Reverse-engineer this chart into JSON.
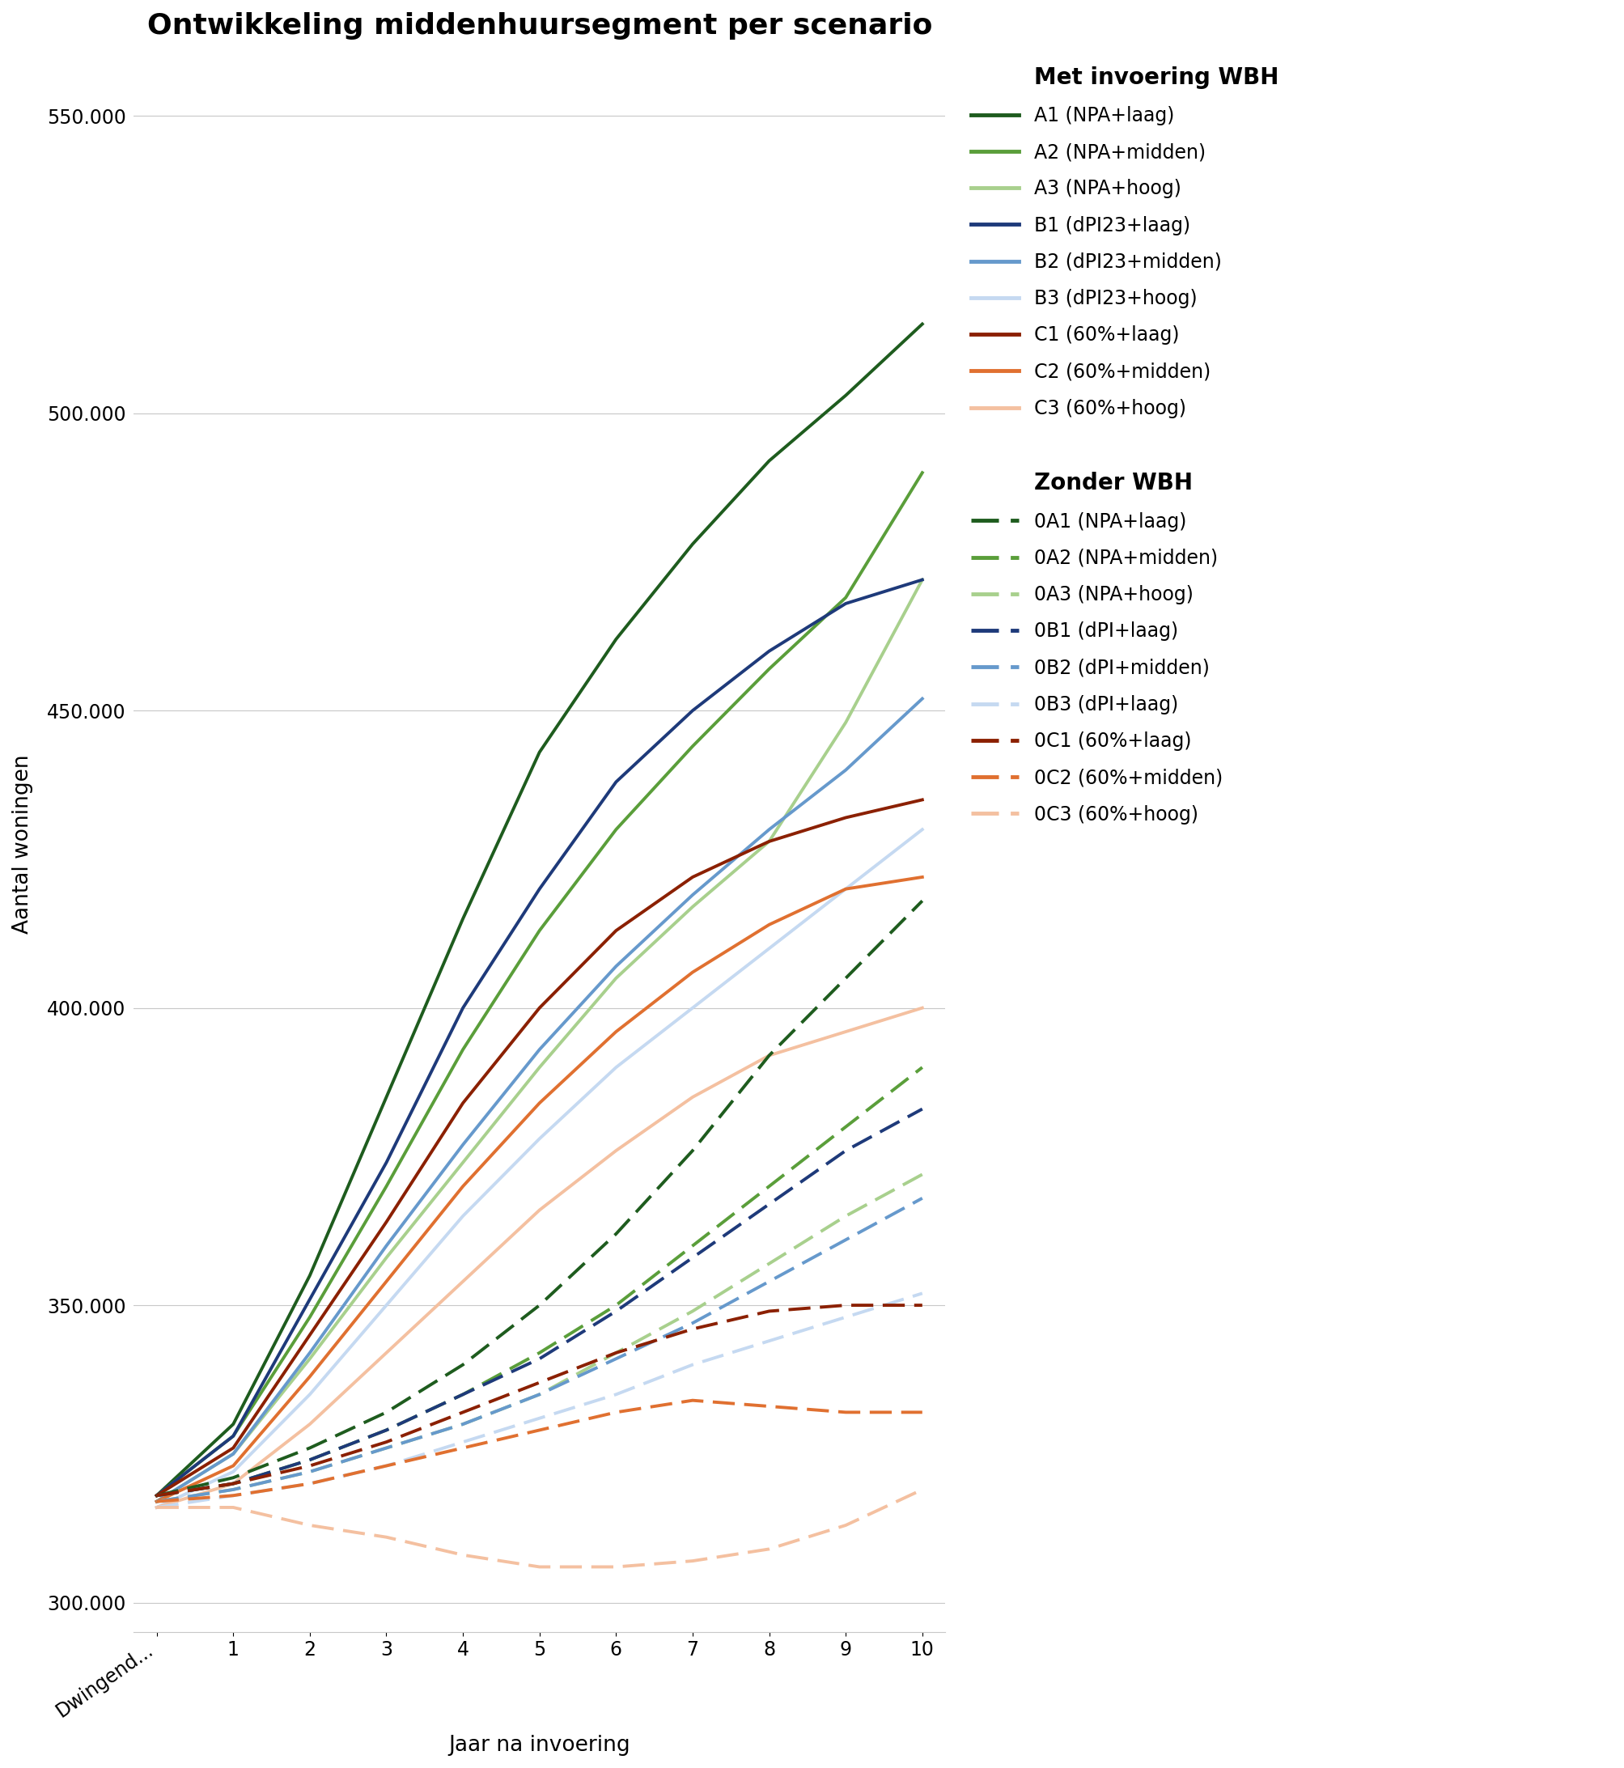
{
  "title": "Ontwikkeling middenhuursegment per scenario",
  "xlabel": "Jaar na invoering",
  "ylabel": "Aantal woningen",
  "xtick_labels": [
    "Dwingend...",
    "1",
    "2",
    "3",
    "4",
    "5",
    "6",
    "7",
    "8",
    "9",
    "10"
  ],
  "ylim": [
    295000,
    560000
  ],
  "yticks": [
    300000,
    350000,
    400000,
    450000,
    500000,
    550000
  ],
  "background_color": "#ffffff",
  "legend_header1": "Met invoering WBH",
  "legend_header2": "Zonder WBH",
  "series": [
    {
      "label": "A1 (NPA+laag)",
      "color": "#1e5c1e",
      "linestyle": "solid",
      "lw": 2.8,
      "values": [
        318000,
        330000,
        355000,
        385000,
        415000,
        443000,
        462000,
        478000,
        492000,
        503000,
        515000
      ]
    },
    {
      "label": "A2 (NPA+midden)",
      "color": "#5a9e3a",
      "linestyle": "solid",
      "lw": 2.8,
      "values": [
        318000,
        328000,
        348000,
        370000,
        393000,
        413000,
        430000,
        444000,
        457000,
        469000,
        490000
      ]
    },
    {
      "label": "A3 (NPA+hoog)",
      "color": "#a8d08d",
      "linestyle": "solid",
      "lw": 2.8,
      "values": [
        317000,
        325000,
        341000,
        358000,
        374000,
        390000,
        405000,
        417000,
        428000,
        448000,
        472000
      ]
    },
    {
      "label": "B1 (dPI23+laag)",
      "color": "#1e3a7a",
      "linestyle": "solid",
      "lw": 2.8,
      "values": [
        318000,
        328000,
        351000,
        374000,
        400000,
        420000,
        438000,
        450000,
        460000,
        468000,
        472000
      ]
    },
    {
      "label": "B2 (dPI23+midden)",
      "color": "#6699cc",
      "linestyle": "solid",
      "lw": 2.8,
      "values": [
        317000,
        325000,
        342000,
        360000,
        377000,
        393000,
        407000,
        419000,
        430000,
        440000,
        452000
      ]
    },
    {
      "label": "B3 (dPI23+hoog)",
      "color": "#c5d9f1",
      "linestyle": "solid",
      "lw": 2.8,
      "values": [
        316000,
        322000,
        335000,
        350000,
        365000,
        378000,
        390000,
        400000,
        410000,
        420000,
        430000
      ]
    },
    {
      "label": "C1 (60%+laag)",
      "color": "#8b2000",
      "linestyle": "solid",
      "lw": 2.8,
      "values": [
        318000,
        326000,
        345000,
        364000,
        384000,
        400000,
        413000,
        422000,
        428000,
        432000,
        435000
      ]
    },
    {
      "label": "C2 (60%+midden)",
      "color": "#e07030",
      "linestyle": "solid",
      "lw": 2.8,
      "values": [
        317000,
        323000,
        338000,
        354000,
        370000,
        384000,
        396000,
        406000,
        414000,
        420000,
        422000
      ]
    },
    {
      "label": "C3 (60%+hoog)",
      "color": "#f4c0a0",
      "linestyle": "solid",
      "lw": 2.8,
      "values": [
        316000,
        320000,
        330000,
        342000,
        354000,
        366000,
        376000,
        385000,
        392000,
        396000,
        400000
      ]
    },
    {
      "label": "0A1 (NPA+laag)",
      "color": "#1e5c1e",
      "linestyle": "dashed",
      "lw": 2.8,
      "values": [
        318000,
        321000,
        326000,
        332000,
        340000,
        350000,
        362000,
        376000,
        392000,
        405000,
        418000
      ]
    },
    {
      "label": "0A2 (NPA+midden)",
      "color": "#5a9e3a",
      "linestyle": "dashed",
      "lw": 2.8,
      "values": [
        318000,
        320000,
        324000,
        329000,
        335000,
        342000,
        350000,
        360000,
        370000,
        380000,
        390000
      ]
    },
    {
      "label": "0A3 (NPA+hoog)",
      "color": "#a8d08d",
      "linestyle": "dashed",
      "lw": 2.8,
      "values": [
        317000,
        319000,
        322000,
        326000,
        330000,
        335000,
        342000,
        349000,
        357000,
        365000,
        372000
      ]
    },
    {
      "label": "0B1 (dPI+laag)",
      "color": "#1e3a7a",
      "linestyle": "dashed",
      "lw": 2.8,
      "values": [
        318000,
        320000,
        324000,
        329000,
        335000,
        341000,
        349000,
        358000,
        367000,
        376000,
        383000
      ]
    },
    {
      "label": "0B2 (dPI+midden)",
      "color": "#6699cc",
      "linestyle": "dashed",
      "lw": 2.8,
      "values": [
        317000,
        319000,
        322000,
        326000,
        330000,
        335000,
        341000,
        347000,
        354000,
        361000,
        368000
      ]
    },
    {
      "label": "0B3 (dPI+laag)",
      "color": "#c5d9f1",
      "linestyle": "dashed",
      "lw": 2.8,
      "values": [
        316000,
        318000,
        320000,
        323000,
        327000,
        331000,
        335000,
        340000,
        344000,
        348000,
        352000
      ]
    },
    {
      "label": "0C1 (60%+laag)",
      "color": "#8b2000",
      "linestyle": "dashed",
      "lw": 2.8,
      "values": [
        318000,
        320000,
        323000,
        327000,
        332000,
        337000,
        342000,
        346000,
        349000,
        350000,
        350000
      ]
    },
    {
      "label": "0C2 (60%+midden)",
      "color": "#e07030",
      "linestyle": "dashed",
      "lw": 2.8,
      "values": [
        317000,
        318000,
        320000,
        323000,
        326000,
        329000,
        332000,
        334000,
        333000,
        332000,
        332000
      ]
    },
    {
      "label": "0C3 (60%+hoog)",
      "color": "#f4c0a0",
      "linestyle": "dashed",
      "lw": 2.8,
      "values": [
        316000,
        316000,
        313000,
        311000,
        308000,
        306000,
        306000,
        307000,
        309000,
        313000,
        319000
      ]
    }
  ]
}
